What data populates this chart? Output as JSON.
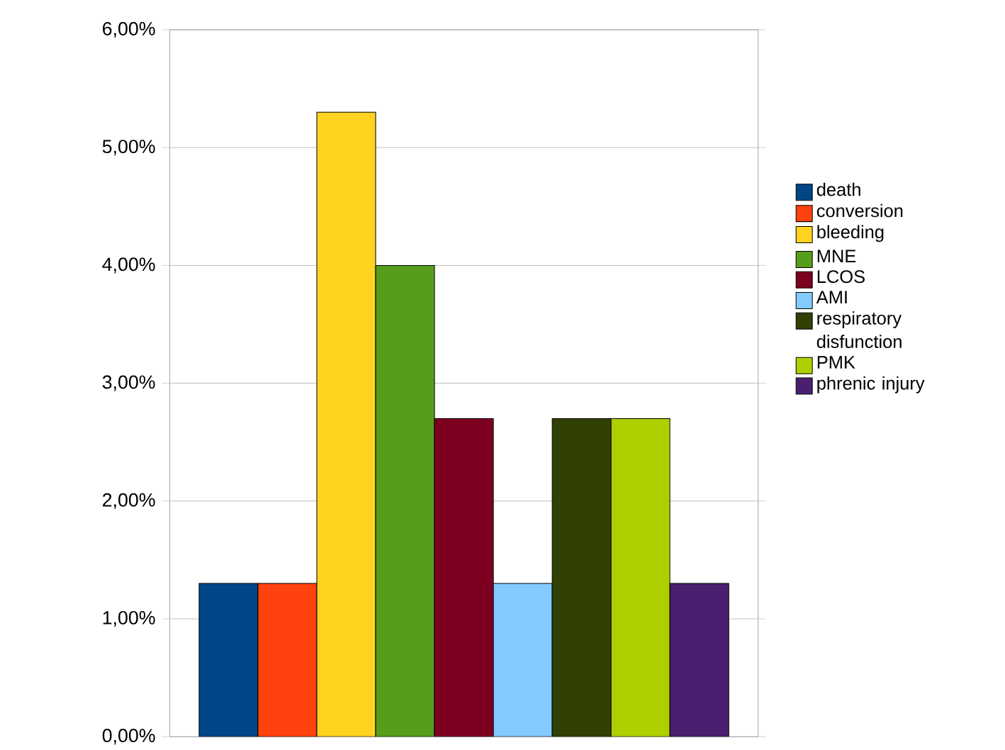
{
  "chart_data": {
    "type": "bar",
    "categories": [
      null
    ],
    "series": [
      {
        "name": "death",
        "color": "#004586",
        "values": [
          1.3
        ]
      },
      {
        "name": "conversion",
        "color": "#ff420e",
        "values": [
          1.3
        ]
      },
      {
        "name": "bleeding",
        "color": "#ffd320",
        "values": [
          5.3
        ]
      },
      {
        "name": "MNE",
        "color": "#579d1c",
        "values": [
          4.0
        ]
      },
      {
        "name": "LCOS",
        "color": "#7e0021",
        "values": [
          2.7
        ]
      },
      {
        "name": "AMI",
        "color": "#83caff",
        "values": [
          1.3
        ]
      },
      {
        "name": "respiratory disfunction",
        "color": "#314004",
        "values": [
          2.7
        ]
      },
      {
        "name": "PMK",
        "color": "#aecf00",
        "values": [
          2.7
        ]
      },
      {
        "name": "phrenic injury",
        "color": "#4b1f6f",
        "values": [
          1.3
        ]
      }
    ],
    "ylim": [
      0,
      6
    ],
    "yticks": [
      {
        "value": 0,
        "label": "0,00%"
      },
      {
        "value": 1,
        "label": "1,00%"
      },
      {
        "value": 2,
        "label": "2,00%"
      },
      {
        "value": 3,
        "label": "3,00%"
      },
      {
        "value": 4,
        "label": "4,00%"
      },
      {
        "value": 5,
        "label": "5,00%"
      },
      {
        "value": 6,
        "label": "6,00%"
      }
    ],
    "grid": "y",
    "legend": "right"
  }
}
